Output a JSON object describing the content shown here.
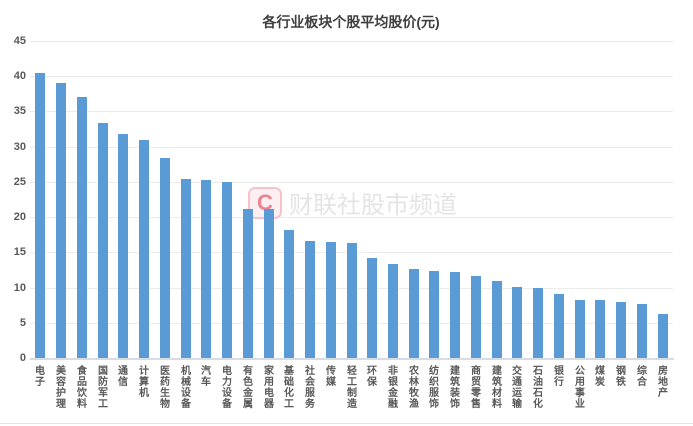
{
  "chart_data": {
    "type": "bar",
    "title": "各行业板块个股平均股价(元)",
    "categories": [
      "电子",
      "美容护理",
      "食品饮料",
      "国防军工",
      "通信",
      "计算机",
      "医药生物",
      "机械设备",
      "汽车",
      "电力设备",
      "有色金属",
      "家用电器",
      "基础化工",
      "社会服务",
      "传媒",
      "轻工制造",
      "环保",
      "非银金融",
      "农林牧渔",
      "纺织服饰",
      "建筑装饰",
      "商贸零售",
      "建筑材料",
      "交通运输",
      "石油石化",
      "银行",
      "公用事业",
      "煤炭",
      "钢铁",
      "综合",
      "房地产"
    ],
    "values": [
      40.5,
      39.1,
      37.0,
      33.3,
      31.8,
      31.0,
      28.4,
      25.4,
      25.3,
      25.0,
      21.2,
      21.1,
      18.2,
      16.6,
      16.5,
      16.3,
      14.2,
      13.3,
      12.6,
      12.4,
      12.2,
      11.7,
      11.0,
      10.1,
      10.0,
      9.1,
      8.3,
      8.3,
      8.0,
      7.6,
      6.3
    ],
    "xlabel": "",
    "ylabel": "",
    "ylim": [
      0,
      45
    ],
    "yticks": [
      45,
      40,
      35,
      30,
      25,
      20,
      15,
      10,
      5,
      0
    ],
    "grid": true,
    "legend": "none",
    "bar_color": "#5b9bd5"
  },
  "watermark": {
    "logo_letter": "C",
    "text": "财联社股市频道"
  },
  "colors": {
    "bar": "#5b9bd5",
    "gridline": "#ececec",
    "axis_line": "#d9dde2",
    "tick_label": "#595959",
    "title": "#404040",
    "watermark_text": "#e4e4e4",
    "watermark_logo_border": "#f7c3cb",
    "watermark_logo_letter": "#ef8292"
  }
}
